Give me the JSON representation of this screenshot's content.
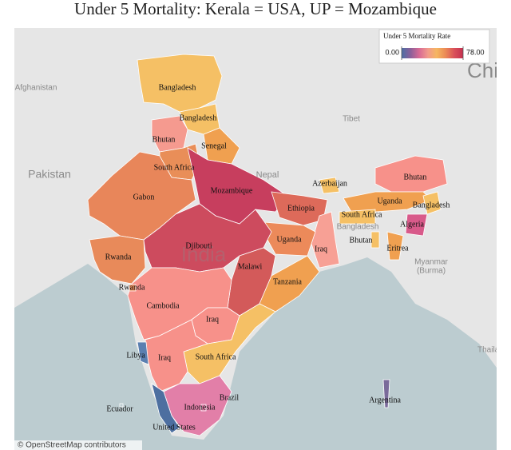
{
  "title": "Under 5 Mortality: Kerala = USA, UP = Mozambique",
  "legend": {
    "title": "Under 5 Mortality Rate",
    "range": [
      {
        "value": 0,
        "label": "0.00"
      },
      {
        "value": 78,
        "label": "78.00"
      }
    ],
    "colors": [
      "#4b6fa5",
      "#8a5f9a",
      "#d86a94",
      "#f29a8c",
      "#f5b660",
      "#eb8a55",
      "#d9505a",
      "#c4304f"
    ]
  },
  "regions": [
    {
      "label": "Bangladesh",
      "color": "#f5c065"
    },
    {
      "label": "Bangladesh",
      "color": "#f5c065"
    },
    {
      "label": "Bhutan",
      "color": "#f59a8f"
    },
    {
      "label": "Senegal",
      "color": "#f0a050"
    },
    {
      "label": "South Africa",
      "color": "#e98e58"
    },
    {
      "label": "Gabon",
      "color": "#e8865a"
    },
    {
      "label": "Mozambique",
      "color": "#c73e5e"
    },
    {
      "label": "Azerbaijan",
      "color": "#f5c065"
    },
    {
      "label": "Ethiopia",
      "color": "#dd6a5a"
    },
    {
      "label": "Iraq",
      "color": "#f7a095"
    },
    {
      "label": "Uganda",
      "color": "#ec8a5a"
    },
    {
      "label": "Djibouti",
      "color": "#cd4b5e"
    },
    {
      "label": "Rwanda",
      "color": "#e88a5a"
    },
    {
      "label": "Malawi",
      "color": "#d35a5a"
    },
    {
      "label": "Tanzania",
      "color": "#f0a050"
    },
    {
      "label": "Cambodia",
      "color": "#f7918a"
    },
    {
      "label": "Iraq",
      "color": "#f7918a"
    },
    {
      "label": "South Africa",
      "color": "#f5c065"
    },
    {
      "label": "Iraq",
      "color": "#f7918a"
    },
    {
      "label": "Libya",
      "color": "#5b7fb0"
    },
    {
      "label": "Brazil",
      "color": "#e27fa8"
    },
    {
      "label": "United States",
      "color": "#4d6fa0"
    },
    {
      "label": "Bhutan",
      "color": "#f7918a"
    },
    {
      "label": "Uganda",
      "color": "#f0a050"
    },
    {
      "label": "Bangladesh",
      "color": "#f5c065"
    },
    {
      "label": "South Africa",
      "color": "#f5c065"
    },
    {
      "label": "Algeria",
      "color": "#d85a8a"
    },
    {
      "label": "Bhutan",
      "color": "#f5c065"
    },
    {
      "label": "Eritrea",
      "color": "#f0a050"
    },
    {
      "label": "Argentina",
      "color": "#7a6a9a"
    },
    {
      "label": "Rwanda",
      "color": "#e88a5a"
    },
    {
      "label": "Indonesia",
      "color": "#e27fa8"
    },
    {
      "label": "Ecuador",
      "color": "#bcccd0"
    }
  ],
  "place_labels": [
    "Afghanistan",
    "Pakistan",
    "Nepal",
    "Tibet",
    "China",
    "Bangladesh",
    "Myanmar",
    "(Burma)",
    "Thailand",
    "India"
  ],
  "attribution": "© OpenStreetMap contributors"
}
